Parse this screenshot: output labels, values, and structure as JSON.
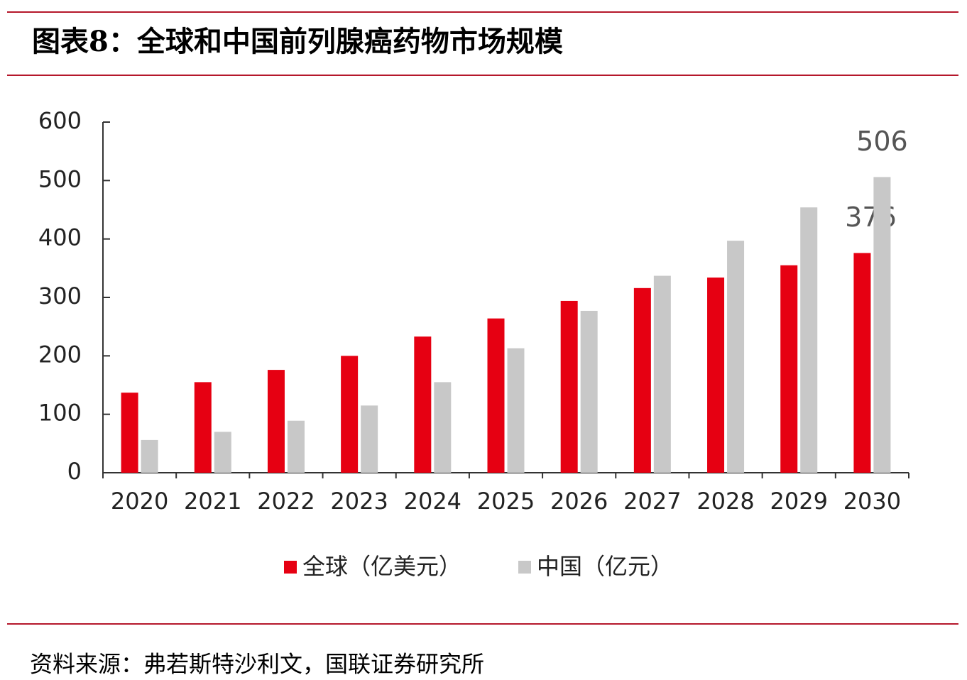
{
  "chart_data": {
    "type": "bar",
    "title": "图表8：全球和中国前列腺癌药物市场规模",
    "source": "资料来源：弗若斯特沙利文，国联证券研究所",
    "categories": [
      "2020",
      "2021",
      "2022",
      "2023",
      "2024",
      "2025",
      "2026",
      "2027",
      "2028",
      "2029",
      "2030"
    ],
    "series": [
      {
        "name": "全球（亿美元）",
        "color": "#e60012",
        "values": [
          137,
          155,
          176,
          200,
          233,
          264,
          294,
          316,
          334,
          355,
          376
        ]
      },
      {
        "name": "中国（亿元）",
        "color": "#c8c8c8",
        "values": [
          56,
          70,
          89,
          115,
          155,
          213,
          277,
          337,
          397,
          454,
          506
        ]
      }
    ],
    "label_last": true,
    "ylim": [
      0,
      600
    ],
    "yticks": [
      0,
      100,
      200,
      300,
      400,
      500,
      600
    ],
    "legend": "bottom"
  }
}
